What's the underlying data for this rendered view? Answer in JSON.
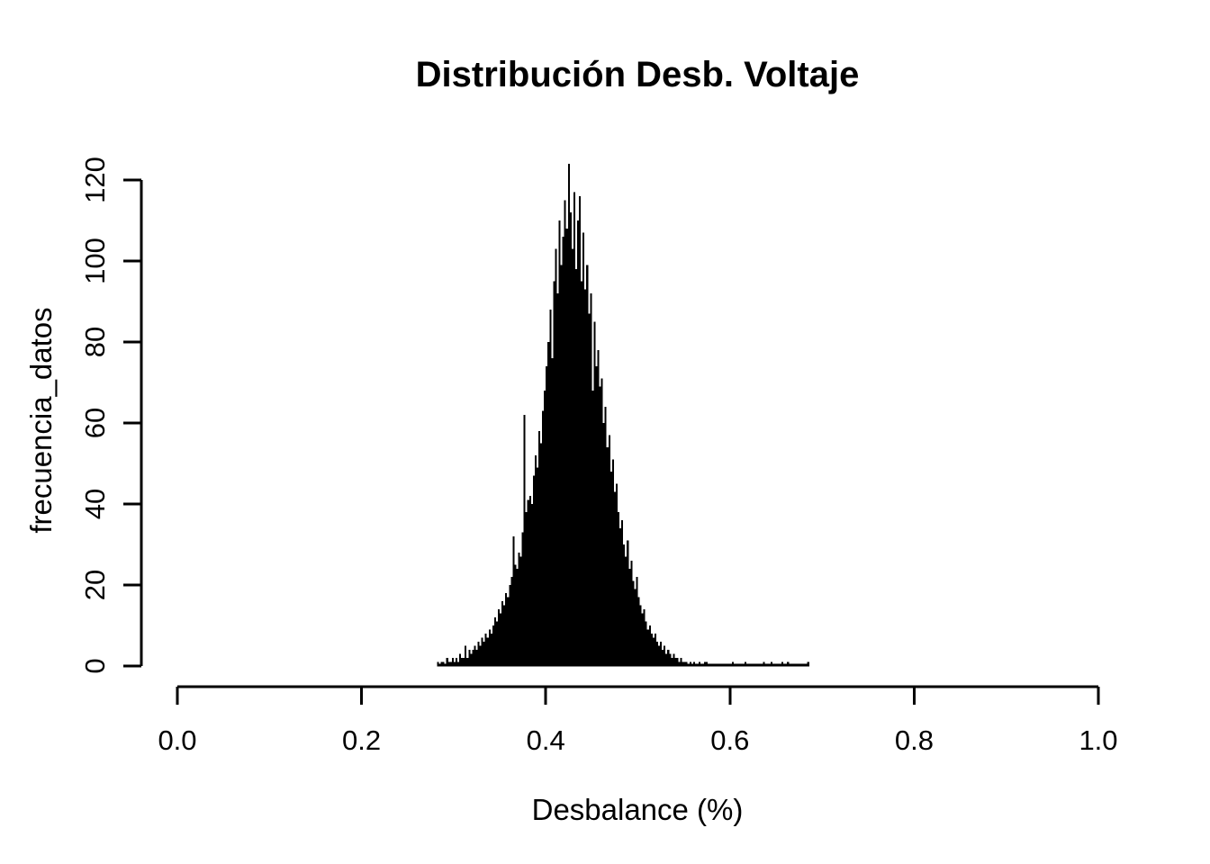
{
  "chart_data": {
    "type": "bar",
    "subtype": "histogram",
    "title": "Distribución Desb. Voltaje",
    "xlabel": "Desbalance (%)",
    "ylabel": "frecuencia_datos",
    "x_tick_labels": [
      "0.0",
      "0.2",
      "0.4",
      "0.6",
      "0.8",
      "1.0"
    ],
    "x_tick_values": [
      0.0,
      0.2,
      0.4,
      0.6,
      0.8,
      1.0
    ],
    "y_tick_labels": [
      "0",
      "20",
      "40",
      "60",
      "80",
      "100",
      "120"
    ],
    "y_tick_values": [
      0,
      20,
      40,
      60,
      80,
      100,
      120
    ],
    "xlim": [
      0.0,
      1.0
    ],
    "ylim": [
      0,
      125
    ],
    "grid": false,
    "legend": null,
    "bar_color": "#000000",
    "axis_color": "#000000",
    "background_color": "#ffffff",
    "histogram": {
      "bin_start": 0.282,
      "bin_width": 0.002,
      "data_range": [
        0.282,
        0.686
      ],
      "peak_value": 124,
      "peak_at": 0.425,
      "counts": [
        1,
        0,
        1,
        1,
        0,
        2,
        1,
        1,
        2,
        1,
        2,
        1,
        3,
        2,
        2,
        5,
        2,
        4,
        3,
        4,
        5,
        4,
        6,
        5,
        7,
        6,
        8,
        7,
        9,
        8,
        10,
        12,
        11,
        14,
        13,
        16,
        15,
        18,
        17,
        20,
        22,
        32,
        25,
        24,
        28,
        27,
        33,
        62,
        38,
        41,
        42,
        40,
        47,
        52,
        49,
        58,
        55,
        63,
        68,
        74,
        80,
        88,
        76,
        95,
        103,
        92,
        110,
        99,
        106,
        115,
        108,
        124,
        112,
        103,
        117,
        98,
        110,
        116,
        95,
        107,
        93,
        99,
        87,
        92,
        68,
        85,
        74,
        78,
        69,
        71,
        60,
        64,
        54,
        57,
        48,
        51,
        43,
        45,
        38,
        34,
        36,
        30,
        27,
        31,
        24,
        26,
        21,
        19,
        22,
        17,
        15,
        13,
        14,
        11,
        9,
        10,
        8,
        7,
        8,
        6,
        5,
        6,
        4,
        5,
        3,
        4,
        3,
        2,
        3,
        2,
        2,
        1,
        2,
        1,
        1,
        1,
        0,
        1,
        0,
        1,
        0,
        0,
        1,
        0,
        0,
        1,
        1,
        0,
        0,
        0,
        0,
        0,
        0,
        0,
        0,
        0,
        0,
        0,
        0,
        0,
        1,
        0,
        0,
        0,
        0,
        0,
        0,
        1,
        0,
        0,
        0,
        0,
        0,
        0,
        0,
        0,
        0,
        1,
        0,
        0,
        0,
        1,
        0,
        0,
        0,
        0,
        0,
        1,
        0,
        0,
        1,
        0,
        0,
        0,
        0,
        0,
        0,
        0,
        0,
        0,
        0,
        1
      ]
    }
  }
}
